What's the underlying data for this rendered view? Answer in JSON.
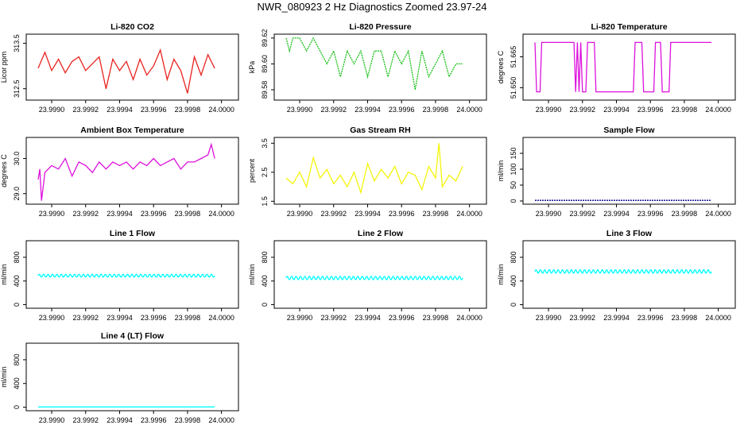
{
  "page": {
    "title": "NWR_080923  2 Hz Diagnostics Zoomed 23.97-24"
  },
  "chart_data": [
    {
      "id": "co2",
      "type": "line",
      "title": "Li-820 CO2",
      "ylabel": "Licor ppm",
      "color": "#e8231e",
      "xlim": [
        23.99885,
        24.0001
      ],
      "ylim": [
        312.25,
        313.7
      ],
      "xticks": [
        "23.9990",
        "23.9992",
        "23.9994",
        "23.9996",
        "23.9998",
        "24.0000"
      ],
      "yticks": [
        {
          "v": 312.5,
          "t": "312.5"
        },
        {
          "v": 313.5,
          "t": "313.5"
        }
      ],
      "series": [
        {
          "x": [
            23.99892,
            23.99896,
            23.999,
            23.99904,
            23.99908,
            23.99912,
            23.99916,
            23.9992,
            23.99924,
            23.99928,
            23.99932,
            23.99936,
            23.9994,
            23.99944,
            23.99948,
            23.99952,
            23.99956,
            23.9996,
            23.99964,
            23.99968,
            23.99972,
            23.99976,
            23.9998,
            23.99984,
            23.99988,
            23.99992,
            23.99996
          ],
          "y": [
            312.95,
            313.3,
            312.9,
            313.15,
            312.85,
            313.1,
            313.2,
            312.9,
            313.05,
            313.2,
            312.5,
            313.15,
            312.9,
            313.1,
            312.7,
            313.15,
            312.8,
            313.0,
            313.35,
            312.7,
            313.15,
            312.9,
            312.4,
            313.2,
            312.8,
            313.25,
            312.95
          ]
        }
      ]
    },
    {
      "id": "pressure",
      "type": "line",
      "title": "Li-820 Pressure",
      "ylabel": "kPa",
      "color": "#19c119",
      "xlim": [
        23.99885,
        24.0001
      ],
      "ylim": [
        89.572,
        89.623
      ],
      "xticks": [
        "23.9990",
        "23.9992",
        "23.9994",
        "23.9996",
        "23.9998",
        "24.0000"
      ],
      "yticks": [
        {
          "v": 89.58,
          "t": "89.58"
        },
        {
          "v": 89.6,
          "t": "89.60"
        },
        {
          "v": 89.62,
          "t": "89.62"
        }
      ],
      "series": [
        {
          "x": [
            23.99892,
            23.99894,
            23.99896,
            23.999,
            23.99904,
            23.99908,
            23.99912,
            23.99916,
            23.9992,
            23.99924,
            23.99928,
            23.99932,
            23.99936,
            23.9994,
            23.99944,
            23.99948,
            23.99952,
            23.99956,
            23.9996,
            23.99964,
            23.99968,
            23.99972,
            23.99976,
            23.9998,
            23.99984,
            23.99988,
            23.99992,
            23.99996
          ],
          "y": [
            89.62,
            89.61,
            89.62,
            89.62,
            89.61,
            89.62,
            89.61,
            89.6,
            89.61,
            89.59,
            89.61,
            89.6,
            89.61,
            89.59,
            89.61,
            89.61,
            89.59,
            89.61,
            89.6,
            89.61,
            89.58,
            89.61,
            89.59,
            89.6,
            89.61,
            89.59,
            89.6,
            89.6
          ]
        }
      ]
    },
    {
      "id": "temp",
      "type": "line",
      "title": "Li-820 Temperature",
      "ylabel": "degrees C",
      "color": "#dd11dd",
      "xlim": [
        23.99885,
        24.0001
      ],
      "ylim": [
        51.644,
        51.676
      ],
      "xticks": [
        "23.9990",
        "23.9992",
        "23.9994",
        "23.9996",
        "23.9998",
        "24.0000"
      ],
      "yticks": [
        {
          "v": 51.65,
          "t": "51.650"
        },
        {
          "v": 51.665,
          "t": "51.665"
        }
      ],
      "series": [
        {
          "x": [
            23.99892,
            23.99893,
            23.99895,
            23.99896,
            23.99915,
            23.99916,
            23.99917,
            23.99918,
            23.99919,
            23.9992,
            23.99922,
            23.99923,
            23.99927,
            23.99928,
            23.9995,
            23.99951,
            23.99955,
            23.99956,
            23.99962,
            23.99963,
            23.99966,
            23.99967,
            23.99971,
            23.99972,
            23.99975,
            23.99976,
            23.99996
          ],
          "y": [
            51.672,
            51.648,
            51.648,
            51.672,
            51.672,
            51.648,
            51.672,
            51.648,
            51.672,
            51.648,
            51.648,
            51.672,
            51.672,
            51.648,
            51.648,
            51.672,
            51.672,
            51.648,
            51.648,
            51.672,
            51.672,
            51.648,
            51.648,
            51.672,
            51.672,
            51.672,
            51.672
          ]
        }
      ]
    },
    {
      "id": "boxtemp",
      "type": "line",
      "title": "Ambient Box Temperature",
      "ylabel": "degrees C",
      "color": "#dd11dd",
      "xlim": [
        23.99885,
        24.0001
      ],
      "ylim": [
        28.7,
        30.6
      ],
      "xticks": [
        "23.9990",
        "23.9992",
        "23.9994",
        "23.9996",
        "23.9998",
        "24.0000"
      ],
      "yticks": [
        {
          "v": 29.0,
          "t": "29.0"
        },
        {
          "v": 30.0,
          "t": "30.0"
        }
      ],
      "series": [
        {
          "x": [
            23.99892,
            23.99893,
            23.99894,
            23.99896,
            23.999,
            23.99904,
            23.99908,
            23.99912,
            23.99916,
            23.9992,
            23.99924,
            23.99928,
            23.99932,
            23.99936,
            23.9994,
            23.99944,
            23.99948,
            23.99952,
            23.99956,
            23.9996,
            23.99964,
            23.99968,
            23.99972,
            23.99976,
            23.9998,
            23.99984,
            23.99988,
            23.99992,
            23.99994,
            23.99996
          ],
          "y": [
            29.4,
            29.7,
            28.8,
            29.6,
            29.8,
            29.7,
            30.0,
            29.5,
            29.9,
            29.8,
            29.6,
            29.9,
            29.7,
            29.9,
            29.8,
            29.9,
            29.7,
            29.9,
            29.8,
            30.0,
            29.8,
            29.9,
            30.0,
            29.7,
            29.9,
            29.9,
            30.0,
            30.1,
            30.4,
            30.0
          ]
        }
      ]
    },
    {
      "id": "rh",
      "type": "line",
      "title": "Gas Stream RH",
      "ylabel": "percent",
      "color": "#f4f40a",
      "xlim": [
        23.99885,
        24.0001
      ],
      "ylim": [
        1.4,
        3.7
      ],
      "xticks": [
        "23.9990",
        "23.9992",
        "23.9994",
        "23.9996",
        "23.9998",
        "24.0000"
      ],
      "yticks": [
        {
          "v": 1.5,
          "t": "1.5"
        },
        {
          "v": 2.5,
          "t": "2.5"
        },
        {
          "v": 3.5,
          "t": "3.5"
        }
      ],
      "series": [
        {
          "x": [
            23.99892,
            23.99896,
            23.999,
            23.99904,
            23.99908,
            23.99912,
            23.99916,
            23.9992,
            23.99924,
            23.99928,
            23.99932,
            23.99936,
            23.9994,
            23.99944,
            23.99948,
            23.99952,
            23.99956,
            23.9996,
            23.99964,
            23.99968,
            23.99972,
            23.99976,
            23.9998,
            23.99982,
            23.99984,
            23.99988,
            23.99992,
            23.99996
          ],
          "y": [
            2.3,
            2.1,
            2.5,
            2.0,
            3.0,
            2.3,
            2.6,
            2.1,
            2.4,
            2.0,
            2.5,
            1.8,
            2.8,
            2.2,
            2.6,
            2.3,
            2.7,
            2.1,
            2.5,
            2.4,
            1.9,
            2.7,
            2.3,
            3.5,
            2.0,
            2.4,
            2.2,
            2.7
          ]
        }
      ]
    },
    {
      "id": "sampleflow",
      "type": "line",
      "title": "Sample Flow",
      "ylabel": "ml/min",
      "color": "#00008b",
      "xlim": [
        23.99885,
        24.0001
      ],
      "ylim": [
        -10,
        200
      ],
      "xticks": [
        "23.9990",
        "23.9992",
        "23.9994",
        "23.9996",
        "23.9998",
        "24.0000"
      ],
      "yticks": [
        {
          "v": 0,
          "t": "0"
        },
        {
          "v": 50,
          "t": "50"
        },
        {
          "v": 100,
          "t": "100"
        },
        {
          "v": 150,
          "t": "150"
        }
      ],
      "series": [
        {
          "x": [
            23.99892,
            23.99996
          ],
          "y": [
            2,
            2
          ]
        }
      ]
    },
    {
      "id": "line1",
      "type": "line",
      "title": "Line 1 Flow",
      "ylabel": "ml/min",
      "color": "#00ffff",
      "xlim": [
        23.99885,
        24.0001
      ],
      "ylim": [
        -60,
        1080
      ],
      "xticks": [
        "23.9990",
        "23.9992",
        "23.9994",
        "23.9996",
        "23.9998",
        "24.0000"
      ],
      "yticks": [
        {
          "v": 0,
          "t": "0"
        },
        {
          "v": 400,
          "t": "400"
        },
        {
          "v": 800,
          "t": "800"
        }
      ],
      "series": [
        {
          "x": [
            23.99892,
            23.99996
          ],
          "y": [
            490,
            490
          ]
        }
      ],
      "wave": 25
    },
    {
      "id": "line2",
      "type": "line",
      "title": "Line 2 Flow",
      "ylabel": "ml/min",
      "color": "#00ffff",
      "xlim": [
        23.99885,
        24.0001
      ],
      "ylim": [
        -60,
        1080
      ],
      "xticks": [
        "23.9990",
        "23.9992",
        "23.9994",
        "23.9996",
        "23.9998",
        "24.0000"
      ],
      "yticks": [
        {
          "v": 0,
          "t": "0"
        },
        {
          "v": 400,
          "t": "400"
        },
        {
          "v": 800,
          "t": "800"
        }
      ],
      "series": [
        {
          "x": [
            23.99892,
            23.99996
          ],
          "y": [
            450,
            450
          ]
        }
      ],
      "wave": 30
    },
    {
      "id": "line3",
      "type": "line",
      "title": "Line 3 Flow",
      "ylabel": "ml/min",
      "color": "#00ffff",
      "xlim": [
        23.99885,
        24.0001
      ],
      "ylim": [
        -60,
        1080
      ],
      "xticks": [
        "23.9990",
        "23.9992",
        "23.9994",
        "23.9996",
        "23.9998",
        "24.0000"
      ],
      "yticks": [
        {
          "v": 0,
          "t": "0"
        },
        {
          "v": 400,
          "t": "400"
        },
        {
          "v": 800,
          "t": "800"
        }
      ],
      "series": [
        {
          "x": [
            23.99892,
            23.99996
          ],
          "y": [
            560,
            560
          ]
        }
      ],
      "wave": 30
    },
    {
      "id": "line4",
      "type": "line",
      "title": "Line 4 (LT) Flow",
      "ylabel": "ml/min",
      "color": "#00ffff",
      "xlim": [
        23.99885,
        24.0001
      ],
      "ylim": [
        -60,
        1080
      ],
      "xticks": [
        "23.9990",
        "23.9992",
        "23.9994",
        "23.9996",
        "23.9998",
        "24.0000"
      ],
      "yticks": [
        {
          "v": 0,
          "t": "0"
        },
        {
          "v": 400,
          "t": "400"
        },
        {
          "v": 800,
          "t": "800"
        }
      ],
      "series": [
        {
          "x": [
            23.99892,
            23.99996
          ],
          "y": [
            5,
            5
          ]
        }
      ]
    }
  ]
}
